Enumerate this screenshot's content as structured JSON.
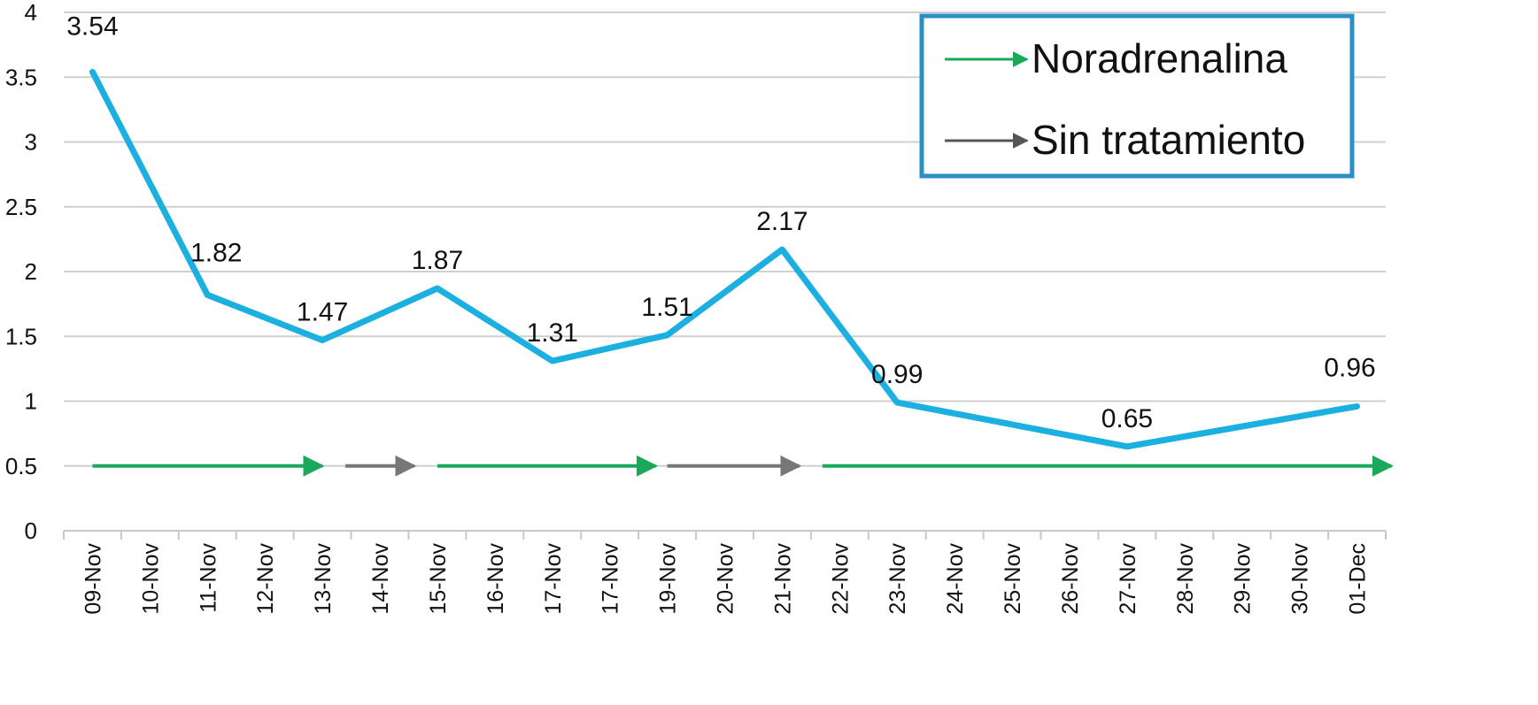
{
  "chart_data": {
    "type": "line",
    "categories": [
      "09-Nov",
      "10-Nov",
      "11-Nov",
      "12-Nov",
      "13-Nov",
      "14-Nov",
      "15-Nov",
      "16-Nov",
      "17-Nov",
      "17-Nov",
      "19-Nov",
      "20-Nov",
      "21-Nov",
      "22-Nov",
      "23-Nov",
      "24-Nov",
      "25-Nov",
      "26-Nov",
      "27-Nov",
      "28-Nov",
      "29-Nov",
      "30-Nov",
      "01-Dec"
    ],
    "series": [
      {
        "color": "#1bb0e0",
        "points": [
          {
            "index": 0,
            "value": 3.54,
            "label": "3.54"
          },
          {
            "index": 2,
            "value": 1.82,
            "label": "1.82"
          },
          {
            "index": 4,
            "value": 1.47,
            "label": "1.47"
          },
          {
            "index": 6,
            "value": 1.87,
            "label": "1.87"
          },
          {
            "index": 8,
            "value": 1.31,
            "label": "1.31"
          },
          {
            "index": 10,
            "value": 1.51,
            "label": "1.51"
          },
          {
            "index": 12,
            "value": 2.17,
            "label": "2.17"
          },
          {
            "index": 14,
            "value": 0.99,
            "label": "0.99"
          },
          {
            "index": 18,
            "value": 0.65,
            "label": "0.65"
          },
          {
            "index": 22,
            "value": 0.96,
            "label": "0.96"
          }
        ]
      }
    ],
    "ylim": [
      0,
      4
    ],
    "yticks": [
      "0",
      "0.5",
      "1",
      "1.5",
      "2",
      "2.5",
      "3",
      "3.5",
      "4"
    ],
    "grid": true,
    "legend_position": "top-right",
    "legend": [
      {
        "label": "Noradrenalina",
        "color": "#1aa85a"
      },
      {
        "label": "Sin tratamiento",
        "color": "#555555"
      }
    ],
    "treatment_arrows": [
      {
        "treatment": "Noradrenalina",
        "from_index": 0,
        "to_index": 4,
        "value": 0.5,
        "color": "#1aa85a"
      },
      {
        "treatment": "Sin tratamiento",
        "from_index": 4.4,
        "to_index": 5.6,
        "value": 0.5,
        "color": "#777777"
      },
      {
        "treatment": "Noradrenalina",
        "from_index": 6,
        "to_index": 9.8,
        "value": 0.5,
        "color": "#1aa85a"
      },
      {
        "treatment": "Sin tratamiento",
        "from_index": 10,
        "to_index": 12.3,
        "value": 0.5,
        "color": "#777777"
      },
      {
        "treatment": "Noradrenalina",
        "from_index": 12.7,
        "to_index": 22.6,
        "value": 0.5,
        "color": "#1aa85a"
      }
    ]
  }
}
